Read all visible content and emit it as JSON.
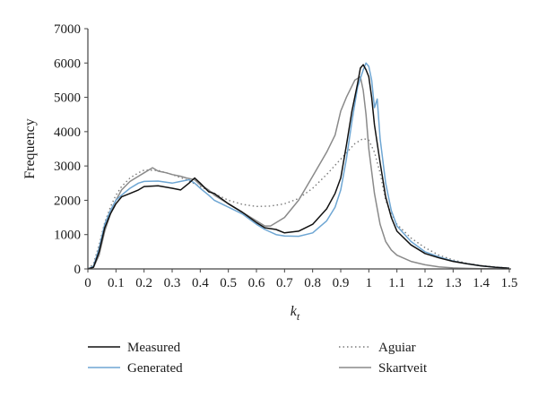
{
  "chart_data": {
    "type": "line",
    "xlabel": "k",
    "xlabel_subscript": "t",
    "ylabel": "Frequency",
    "xlim": [
      0,
      1.5
    ],
    "ylim": [
      0,
      7000
    ],
    "xticks": [
      "0",
      "0.1",
      "0.2",
      "0.3",
      "0.4",
      "0.5",
      "0.6",
      "0.7",
      "0.8",
      "0.9",
      "1",
      "1.1",
      "1.2",
      "1.3",
      "1.4",
      "1.5"
    ],
    "yticks": [
      "0",
      "1000",
      "2000",
      "3000",
      "4000",
      "5000",
      "6000",
      "7000"
    ],
    "grid": false,
    "legend_position": "bottom",
    "series": [
      {
        "name": "Measured",
        "color": "#111111",
        "style": "solid",
        "points": [
          [
            0,
            0
          ],
          [
            0.02,
            50
          ],
          [
            0.04,
            500
          ],
          [
            0.06,
            1200
          ],
          [
            0.08,
            1600
          ],
          [
            0.1,
            1900
          ],
          [
            0.12,
            2100
          ],
          [
            0.15,
            2200
          ],
          [
            0.18,
            2300
          ],
          [
            0.2,
            2400
          ],
          [
            0.25,
            2420
          ],
          [
            0.3,
            2350
          ],
          [
            0.33,
            2300
          ],
          [
            0.36,
            2500
          ],
          [
            0.38,
            2650
          ],
          [
            0.4,
            2500
          ],
          [
            0.43,
            2250
          ],
          [
            0.45,
            2200
          ],
          [
            0.5,
            1900
          ],
          [
            0.55,
            1650
          ],
          [
            0.6,
            1350
          ],
          [
            0.63,
            1200
          ],
          [
            0.67,
            1150
          ],
          [
            0.7,
            1050
          ],
          [
            0.75,
            1100
          ],
          [
            0.8,
            1300
          ],
          [
            0.85,
            1750
          ],
          [
            0.88,
            2200
          ],
          [
            0.9,
            2650
          ],
          [
            0.92,
            3600
          ],
          [
            0.94,
            4600
          ],
          [
            0.96,
            5400
          ],
          [
            0.97,
            5850
          ],
          [
            0.98,
            5950
          ],
          [
            0.99,
            5800
          ],
          [
            1.0,
            5600
          ],
          [
            1.01,
            5000
          ],
          [
            1.02,
            4200
          ],
          [
            1.04,
            3100
          ],
          [
            1.06,
            2100
          ],
          [
            1.08,
            1500
          ],
          [
            1.1,
            1100
          ],
          [
            1.15,
            700
          ],
          [
            1.2,
            450
          ],
          [
            1.25,
            320
          ],
          [
            1.3,
            220
          ],
          [
            1.35,
            150
          ],
          [
            1.4,
            90
          ],
          [
            1.45,
            50
          ],
          [
            1.5,
            20
          ]
        ]
      },
      {
        "name": "Generated",
        "color": "#6ea6d3",
        "style": "solid",
        "points": [
          [
            0,
            0
          ],
          [
            0.02,
            80
          ],
          [
            0.04,
            600
          ],
          [
            0.06,
            1300
          ],
          [
            0.08,
            1700
          ],
          [
            0.1,
            2000
          ],
          [
            0.12,
            2150
          ],
          [
            0.15,
            2350
          ],
          [
            0.18,
            2500
          ],
          [
            0.2,
            2550
          ],
          [
            0.25,
            2560
          ],
          [
            0.3,
            2500
          ],
          [
            0.33,
            2550
          ],
          [
            0.36,
            2600
          ],
          [
            0.38,
            2500
          ],
          [
            0.4,
            2350
          ],
          [
            0.43,
            2150
          ],
          [
            0.45,
            2000
          ],
          [
            0.5,
            1800
          ],
          [
            0.55,
            1600
          ],
          [
            0.6,
            1300
          ],
          [
            0.63,
            1150
          ],
          [
            0.67,
            1000
          ],
          [
            0.7,
            960
          ],
          [
            0.75,
            950
          ],
          [
            0.8,
            1050
          ],
          [
            0.85,
            1400
          ],
          [
            0.88,
            1800
          ],
          [
            0.9,
            2300
          ],
          [
            0.92,
            3200
          ],
          [
            0.94,
            4300
          ],
          [
            0.96,
            5300
          ],
          [
            0.98,
            5800
          ],
          [
            0.99,
            6000
          ],
          [
            1.0,
            5900
          ],
          [
            1.01,
            5500
          ],
          [
            1.02,
            4700
          ],
          [
            1.03,
            4950
          ],
          [
            1.04,
            3800
          ],
          [
            1.06,
            2500
          ],
          [
            1.08,
            1700
          ],
          [
            1.1,
            1250
          ],
          [
            1.15,
            800
          ],
          [
            1.2,
            500
          ],
          [
            1.25,
            350
          ],
          [
            1.3,
            230
          ],
          [
            1.35,
            150
          ],
          [
            1.4,
            90
          ],
          [
            1.45,
            50
          ],
          [
            1.5,
            20
          ]
        ]
      },
      {
        "name": "Aguiar",
        "color": "#7a7a7a",
        "style": "dotted",
        "points": [
          [
            0,
            0
          ],
          [
            0.02,
            150
          ],
          [
            0.04,
            700
          ],
          [
            0.06,
            1350
          ],
          [
            0.08,
            1800
          ],
          [
            0.1,
            2150
          ],
          [
            0.12,
            2400
          ],
          [
            0.15,
            2650
          ],
          [
            0.18,
            2800
          ],
          [
            0.2,
            2880
          ],
          [
            0.25,
            2870
          ],
          [
            0.3,
            2750
          ],
          [
            0.35,
            2600
          ],
          [
            0.4,
            2400
          ],
          [
            0.45,
            2200
          ],
          [
            0.5,
            2000
          ],
          [
            0.55,
            1880
          ],
          [
            0.6,
            1820
          ],
          [
            0.65,
            1830
          ],
          [
            0.7,
            1900
          ],
          [
            0.75,
            2050
          ],
          [
            0.8,
            2350
          ],
          [
            0.85,
            2750
          ],
          [
            0.9,
            3200
          ],
          [
            0.95,
            3650
          ],
          [
            0.98,
            3800
          ],
          [
            1.0,
            3750
          ],
          [
            1.02,
            3400
          ],
          [
            1.04,
            2800
          ],
          [
            1.06,
            2000
          ],
          [
            1.08,
            1600
          ],
          [
            1.1,
            1300
          ],
          [
            1.15,
            900
          ],
          [
            1.2,
            620
          ],
          [
            1.25,
            400
          ],
          [
            1.3,
            260
          ],
          [
            1.35,
            160
          ],
          [
            1.4,
            100
          ],
          [
            1.45,
            55
          ],
          [
            1.5,
            25
          ]
        ]
      },
      {
        "name": "Skartveit",
        "color": "#8a8a8a",
        "style": "solid",
        "points": [
          [
            0,
            0
          ],
          [
            0.02,
            50
          ],
          [
            0.04,
            400
          ],
          [
            0.06,
            1100
          ],
          [
            0.08,
            1600
          ],
          [
            0.1,
            2000
          ],
          [
            0.12,
            2300
          ],
          [
            0.15,
            2550
          ],
          [
            0.18,
            2700
          ],
          [
            0.2,
            2800
          ],
          [
            0.23,
            2950
          ],
          [
            0.25,
            2850
          ],
          [
            0.28,
            2800
          ],
          [
            0.3,
            2750
          ],
          [
            0.33,
            2700
          ],
          [
            0.35,
            2650
          ],
          [
            0.38,
            2600
          ],
          [
            0.4,
            2450
          ],
          [
            0.43,
            2300
          ],
          [
            0.45,
            2150
          ],
          [
            0.5,
            1900
          ],
          [
            0.55,
            1650
          ],
          [
            0.6,
            1400
          ],
          [
            0.63,
            1250
          ],
          [
            0.65,
            1250
          ],
          [
            0.7,
            1500
          ],
          [
            0.75,
            2000
          ],
          [
            0.8,
            2700
          ],
          [
            0.85,
            3400
          ],
          [
            0.88,
            3900
          ],
          [
            0.9,
            4600
          ],
          [
            0.92,
            5000
          ],
          [
            0.95,
            5500
          ],
          [
            0.97,
            5600
          ],
          [
            0.98,
            5200
          ],
          [
            0.99,
            4500
          ],
          [
            1.0,
            3500
          ],
          [
            1.02,
            2200
          ],
          [
            1.04,
            1300
          ],
          [
            1.06,
            800
          ],
          [
            1.08,
            550
          ],
          [
            1.1,
            400
          ],
          [
            1.15,
            220
          ],
          [
            1.2,
            120
          ],
          [
            1.25,
            60
          ],
          [
            1.3,
            30
          ],
          [
            1.35,
            15
          ],
          [
            1.4,
            8
          ],
          [
            1.45,
            4
          ],
          [
            1.5,
            2
          ]
        ]
      }
    ]
  }
}
